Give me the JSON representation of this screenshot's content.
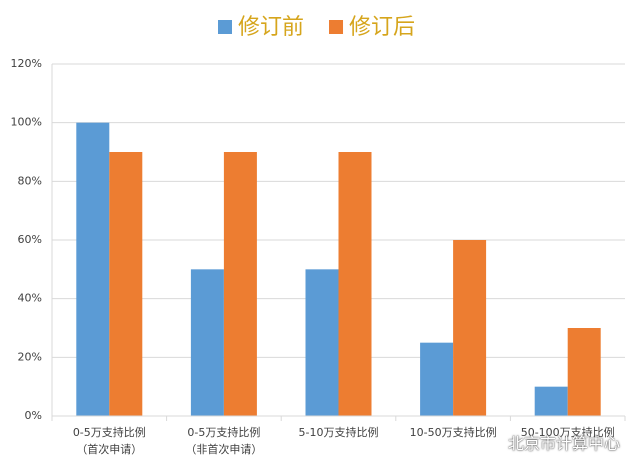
{
  "chart_data": {
    "type": "bar",
    "categories": [
      "0-5万支持比例\n（首次申请）",
      "0-5万支持比例\n（非首次申请）",
      "5-10万支持比例",
      "10-50万支持比例",
      "50-100万支持比例"
    ],
    "series": [
      {
        "name": "修订前",
        "color": "#5b9bd5",
        "values": [
          100,
          50,
          50,
          25,
          10
        ]
      },
      {
        "name": "修订后",
        "color": "#ed7d31",
        "values": [
          90,
          90,
          90,
          60,
          30
        ]
      }
    ],
    "ylim": [
      0,
      120
    ],
    "yticks": [
      {
        "value": 0,
        "label": "0%"
      },
      {
        "value": 20,
        "label": "20%"
      },
      {
        "value": 40,
        "label": "40%"
      },
      {
        "value": 60,
        "label": "60%"
      },
      {
        "value": 80,
        "label": "80%"
      },
      {
        "value": 100,
        "label": "100%"
      },
      {
        "value": 120,
        "label": "120%"
      }
    ],
    "grid": true,
    "legend": "top",
    "watermark": "北京市计算中心"
  }
}
